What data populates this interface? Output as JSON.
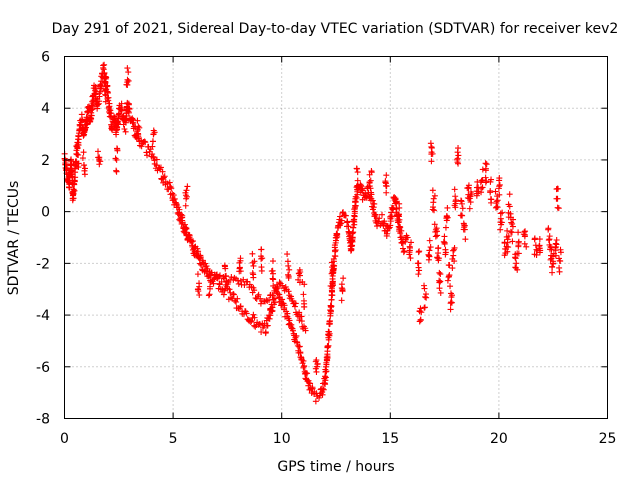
{
  "chart_data": {
    "type": "scatter",
    "title": "Day 291 of 2021, Sidereal Day-to-day VTEC variation (SDTVAR) for receiver kev2",
    "xlabel": "GPS time / hours",
    "ylabel": "SDTVAR / TECUs",
    "xlim": [
      0,
      25
    ],
    "ylim": [
      -8,
      6
    ],
    "xticks": [
      0,
      5,
      10,
      15,
      20,
      25
    ],
    "yticks": [
      -8,
      -6,
      -4,
      -2,
      0,
      2,
      4,
      6
    ],
    "grid": true,
    "marker": "+",
    "color": "#ff0000",
    "series": [
      {
        "name": "SDTVAR",
        "trace": [
          [
            0.0,
            2.2
          ],
          [
            0.1,
            1.5
          ],
          [
            0.2,
            1.0
          ],
          [
            0.3,
            2.0
          ],
          [
            0.4,
            0.6
          ],
          [
            0.5,
            1.6
          ],
          [
            0.6,
            2.4
          ],
          [
            0.7,
            3.2
          ],
          [
            0.8,
            3.6
          ],
          [
            0.9,
            2.8
          ],
          [
            1.0,
            3.4
          ],
          [
            1.1,
            4.0
          ],
          [
            1.2,
            3.4
          ],
          [
            1.3,
            4.3
          ],
          [
            1.4,
            4.8
          ],
          [
            1.5,
            4.2
          ],
          [
            1.6,
            4.4
          ],
          [
            1.7,
            5.2
          ],
          [
            1.8,
            5.6
          ],
          [
            1.9,
            5.0
          ],
          [
            2.0,
            4.4
          ],
          [
            2.1,
            3.8
          ],
          [
            2.2,
            3.2
          ],
          [
            2.3,
            3.6
          ],
          [
            2.4,
            3.0
          ],
          [
            2.5,
            3.8
          ],
          [
            2.6,
            4.1
          ],
          [
            2.7,
            3.7
          ],
          [
            2.8,
            3.3
          ],
          [
            2.9,
            4.2
          ],
          [
            3.0,
            3.8
          ],
          [
            3.2,
            3.2
          ],
          [
            3.4,
            2.8
          ],
          [
            3.6,
            2.6
          ],
          [
            3.8,
            2.4
          ],
          [
            4.0,
            2.2
          ],
          [
            4.2,
            1.9
          ],
          [
            4.4,
            1.6
          ],
          [
            4.6,
            1.2
          ],
          [
            4.8,
            1.0
          ],
          [
            5.0,
            0.6
          ],
          [
            5.2,
            0.1
          ],
          [
            5.4,
            -0.3
          ],
          [
            5.6,
            -0.8
          ],
          [
            5.8,
            -1.2
          ],
          [
            6.0,
            -1.6
          ],
          [
            6.2,
            -1.9
          ],
          [
            6.4,
            -2.1
          ],
          [
            6.6,
            -2.3
          ],
          [
            6.8,
            -2.5
          ],
          [
            7.0,
            -2.7
          ],
          [
            7.2,
            -2.9
          ],
          [
            7.4,
            -3.1
          ],
          [
            7.6,
            -3.2
          ],
          [
            7.8,
            -3.4
          ],
          [
            8.0,
            -3.6
          ],
          [
            8.2,
            -3.8
          ],
          [
            8.4,
            -3.9
          ],
          [
            8.6,
            -4.1
          ],
          [
            8.8,
            -4.3
          ],
          [
            9.0,
            -4.5
          ],
          [
            9.2,
            -4.6
          ],
          [
            9.4,
            -4.2
          ],
          [
            9.6,
            -3.5
          ],
          [
            9.8,
            -3.1
          ],
          [
            10.0,
            -3.5
          ],
          [
            10.2,
            -3.9
          ],
          [
            10.4,
            -4.3
          ],
          [
            10.6,
            -4.8
          ],
          [
            10.8,
            -5.3
          ],
          [
            11.0,
            -5.9
          ],
          [
            11.2,
            -6.5
          ],
          [
            11.4,
            -7.0
          ],
          [
            11.6,
            -7.2
          ],
          [
            11.8,
            -7.1
          ],
          [
            12.0,
            -6.5
          ],
          [
            12.1,
            -5.5
          ],
          [
            12.2,
            -4.4
          ],
          [
            12.3,
            -3.3
          ],
          [
            12.4,
            -2.0
          ],
          [
            12.5,
            -1.2
          ],
          [
            12.6,
            -0.6
          ],
          [
            12.7,
            -0.3
          ],
          [
            12.8,
            -0.2
          ],
          [
            13.0,
            -0.4
          ],
          [
            13.1,
            -0.8
          ],
          [
            13.2,
            -1.5
          ],
          [
            13.3,
            -0.6
          ],
          [
            13.4,
            0.4
          ],
          [
            13.5,
            0.9
          ],
          [
            13.6,
            1.1
          ],
          [
            13.7,
            0.7
          ],
          [
            13.8,
            0.5
          ],
          [
            14.0,
            0.9
          ],
          [
            14.2,
            0.3
          ],
          [
            14.4,
            -0.4
          ],
          [
            14.6,
            -0.3
          ],
          [
            14.8,
            -0.8
          ],
          [
            15.0,
            -0.3
          ],
          [
            15.2,
            0.5
          ],
          [
            15.4,
            -0.5
          ],
          [
            15.6,
            -1.4
          ],
          [
            15.8,
            -1.0
          ]
        ],
        "band": [
          [
            5.3,
            -0.2
          ],
          [
            5.5,
            -0.6
          ],
          [
            5.7,
            -1.0
          ],
          [
            5.9,
            -1.3
          ],
          [
            6.1,
            -1.6
          ],
          [
            6.3,
            -1.9
          ],
          [
            6.5,
            -2.2
          ],
          [
            6.7,
            -2.5
          ],
          [
            6.9,
            -2.6
          ],
          [
            7.1,
            -2.6
          ],
          [
            7.3,
            -2.6
          ],
          [
            7.5,
            -2.7
          ],
          [
            7.7,
            -2.6
          ],
          [
            7.9,
            -2.7
          ],
          [
            8.1,
            -2.8
          ],
          [
            8.3,
            -2.8
          ],
          [
            8.5,
            -2.9
          ],
          [
            8.7,
            -3.1
          ],
          [
            8.9,
            -3.3
          ],
          [
            9.1,
            -3.5
          ],
          [
            9.3,
            -3.4
          ],
          [
            9.5,
            -3.2
          ],
          [
            9.7,
            -3.0
          ],
          [
            9.9,
            -2.9
          ],
          [
            10.1,
            -2.9
          ],
          [
            10.3,
            -3.1
          ],
          [
            10.5,
            -3.4
          ],
          [
            10.7,
            -3.8
          ],
          [
            10.9,
            -4.2
          ],
          [
            11.1,
            -4.6
          ]
        ],
        "scatter": [
          [
            0.6,
            2.2
          ],
          [
            0.9,
            1.8
          ],
          [
            1.6,
            2.1
          ],
          [
            1.9,
            4.5
          ],
          [
            2.4,
            2.0
          ],
          [
            2.9,
            5.1
          ],
          [
            3.4,
            3.3
          ],
          [
            4.1,
            3.0
          ],
          [
            5.6,
            0.5
          ],
          [
            6.2,
            -2.9
          ],
          [
            6.7,
            -2.9
          ],
          [
            7.4,
            -2.5
          ],
          [
            8.1,
            -1.9
          ],
          [
            8.7,
            -2.1
          ],
          [
            9.1,
            -1.8
          ],
          [
            9.6,
            -2.4
          ],
          [
            10.3,
            -2.1
          ],
          [
            10.8,
            -2.4
          ],
          [
            11.0,
            -3.2
          ],
          [
            11.6,
            -6.2
          ],
          [
            12.3,
            -2.4
          ],
          [
            12.8,
            -3.0
          ],
          [
            13.5,
            1.2
          ],
          [
            14.1,
            1.2
          ],
          [
            14.8,
            1.0
          ],
          [
            15.4,
            -0.1
          ],
          [
            15.9,
            -1.5
          ],
          [
            16.3,
            -2.0
          ],
          [
            16.4,
            -4.2
          ],
          [
            16.6,
            -3.3
          ],
          [
            16.8,
            -1.5
          ],
          [
            16.9,
            2.3
          ],
          [
            17.0,
            0.5
          ],
          [
            17.1,
            -0.7
          ],
          [
            17.2,
            -1.6
          ],
          [
            17.3,
            -2.7
          ],
          [
            17.5,
            -1.2
          ],
          [
            17.6,
            -0.2
          ],
          [
            17.7,
            -2.5
          ],
          [
            17.8,
            -3.5
          ],
          [
            17.9,
            -1.7
          ],
          [
            18.0,
            0.4
          ],
          [
            18.1,
            2.3
          ],
          [
            18.3,
            0.3
          ],
          [
            18.4,
            -0.6
          ],
          [
            18.6,
            0.9
          ],
          [
            18.7,
            0.6
          ],
          [
            19.0,
            0.7
          ],
          [
            19.2,
            1.2
          ],
          [
            19.4,
            1.6
          ],
          [
            19.6,
            0.8
          ],
          [
            19.9,
            0.4
          ],
          [
            20.0,
            0.9
          ],
          [
            20.1,
            -0.5
          ],
          [
            20.3,
            -1.6
          ],
          [
            20.4,
            -1.2
          ],
          [
            20.5,
            0.2
          ],
          [
            20.6,
            -0.8
          ],
          [
            20.8,
            -2.0
          ],
          [
            20.9,
            -1.3
          ],
          [
            21.2,
            -0.9
          ],
          [
            21.7,
            -1.3
          ],
          [
            21.9,
            -1.5
          ],
          [
            22.3,
            -1.1
          ],
          [
            22.4,
            -1.7
          ],
          [
            22.5,
            -2.0
          ],
          [
            22.6,
            -1.4
          ],
          [
            22.7,
            0.5
          ],
          [
            22.8,
            -1.9
          ]
        ]
      }
    ]
  }
}
